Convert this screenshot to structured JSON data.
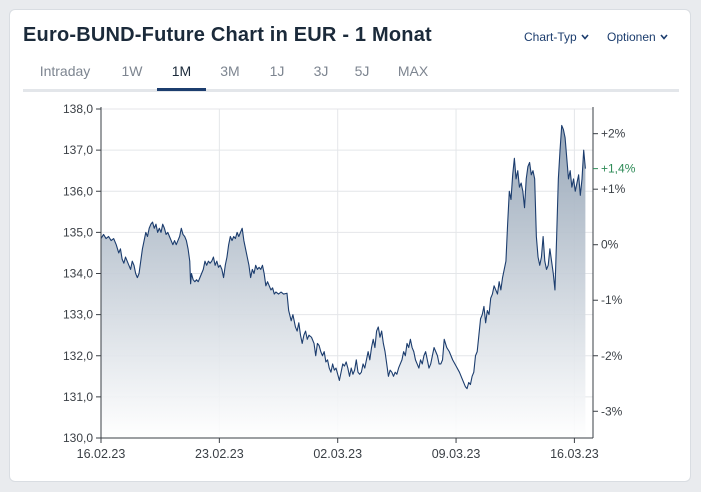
{
  "header": {
    "title": "Euro-BUND-Future Chart in EUR - 1 Monat",
    "chart_type_label": "Chart-Typ",
    "options_label": "Optionen"
  },
  "tabs": [
    {
      "label": "Intraday"
    },
    {
      "label": "1W"
    },
    {
      "label": "1M",
      "active": true
    },
    {
      "label": "3M"
    },
    {
      "label": "1J"
    },
    {
      "label": "3J"
    },
    {
      "label": "5J"
    },
    {
      "label": "MAX"
    }
  ],
  "colors": {
    "line": "#1c3d6e",
    "fill_top": "#93a3b5",
    "fill_bottom": "#ffffff",
    "positive": "#2e8b57",
    "accent": "#1c3d6e"
  },
  "chart_data": {
    "type": "area",
    "title": "",
    "xlabel": "",
    "ylabel": "",
    "ylim": [
      130,
      138
    ],
    "y_ticks": [
      "138,0",
      "137,0",
      "136,0",
      "135,0",
      "134,0",
      "133,0",
      "132,0",
      "131,0",
      "130,0"
    ],
    "y_tick_values": [
      138,
      137,
      136,
      135,
      134,
      133,
      132,
      131,
      130
    ],
    "x_ticks": [
      "16.02.23",
      "23.02.23",
      "02.03.23",
      "09.03.23",
      "16.03.23"
    ],
    "x_tick_positions": [
      0,
      7,
      14,
      21,
      28
    ],
    "xlim": [
      0,
      29.1
    ],
    "right_axis": {
      "labels": [
        "+2%",
        "+1%",
        "0%",
        "-1%",
        "-2%",
        "-3%"
      ],
      "values": [
        137.4,
        136.05,
        134.7,
        133.35,
        132.0,
        130.65
      ],
      "current_change": "+1,4%",
      "current_value": 136.55
    },
    "grid": true,
    "series": [
      {
        "points": [
          [
            0,
            134.85
          ],
          [
            0.15,
            134.95
          ],
          [
            0.3,
            134.85
          ],
          [
            0.45,
            134.9
          ],
          [
            0.6,
            134.8
          ],
          [
            0.75,
            134.85
          ],
          [
            0.9,
            134.7
          ],
          [
            1.05,
            134.5
          ],
          [
            1.15,
            134.6
          ],
          [
            1.25,
            134.35
          ],
          [
            1.35,
            134.25
          ],
          [
            1.45,
            134.4
          ],
          [
            1.55,
            134.3
          ],
          [
            1.65,
            134.2
          ],
          [
            1.75,
            134.1
          ],
          [
            1.85,
            134.3
          ],
          [
            1.95,
            134.2
          ],
          [
            2.05,
            134.0
          ],
          [
            2.15,
            133.9
          ],
          [
            2.25,
            134.0
          ],
          [
            2.35,
            134.3
          ],
          [
            2.45,
            134.6
          ],
          [
            2.55,
            134.8
          ],
          [
            2.65,
            135.0
          ],
          [
            2.75,
            134.9
          ],
          [
            2.85,
            135.1
          ],
          [
            2.95,
            135.2
          ],
          [
            3.05,
            135.25
          ],
          [
            3.15,
            135.1
          ],
          [
            3.25,
            135.2
          ],
          [
            3.35,
            135.0
          ],
          [
            3.45,
            135.1
          ],
          [
            3.55,
            135.0
          ],
          [
            3.65,
            135.2
          ],
          [
            3.75,
            135.1
          ],
          [
            3.85,
            134.95
          ],
          [
            3.95,
            135.0
          ],
          [
            4.05,
            134.9
          ],
          [
            4.15,
            134.8
          ],
          [
            4.25,
            134.7
          ],
          [
            4.35,
            134.8
          ],
          [
            4.45,
            134.7
          ],
          [
            4.55,
            134.8
          ],
          [
            4.65,
            134.9
          ],
          [
            4.75,
            135.1
          ],
          [
            4.85,
            134.95
          ],
          [
            4.95,
            134.9
          ],
          [
            5.05,
            134.8
          ],
          [
            5.15,
            134.6
          ],
          [
            5.25,
            134.3
          ],
          [
            5.3,
            133.75
          ],
          [
            5.35,
            134.0
          ],
          [
            5.45,
            133.85
          ],
          [
            5.55,
            133.8
          ],
          [
            5.65,
            133.85
          ],
          [
            5.75,
            133.8
          ],
          [
            5.85,
            133.9
          ],
          [
            5.95,
            134.0
          ],
          [
            6.05,
            134.1
          ],
          [
            6.15,
            134.3
          ],
          [
            6.25,
            134.2
          ],
          [
            6.35,
            134.3
          ],
          [
            6.45,
            134.25
          ],
          [
            6.55,
            134.3
          ],
          [
            6.65,
            134.4
          ],
          [
            6.75,
            134.2
          ],
          [
            6.85,
            134.3
          ],
          [
            6.95,
            134.15
          ],
          [
            7.05,
            134.2
          ],
          [
            7.15,
            134.1
          ],
          [
            7.25,
            133.9
          ],
          [
            7.35,
            134.2
          ],
          [
            7.45,
            134.4
          ],
          [
            7.55,
            134.7
          ],
          [
            7.65,
            134.9
          ],
          [
            7.75,
            134.8
          ],
          [
            7.85,
            134.9
          ],
          [
            7.95,
            134.85
          ],
          [
            8.05,
            135.0
          ],
          [
            8.15,
            134.9
          ],
          [
            8.25,
            135.0
          ],
          [
            8.35,
            135.1
          ],
          [
            8.45,
            134.8
          ],
          [
            8.55,
            134.6
          ],
          [
            8.65,
            134.4
          ],
          [
            8.75,
            134.2
          ],
          [
            8.85,
            133.9
          ],
          [
            8.95,
            134.1
          ],
          [
            9.05,
            134.0
          ],
          [
            9.15,
            134.2
          ],
          [
            9.25,
            134.1
          ],
          [
            9.35,
            134.15
          ],
          [
            9.45,
            134.1
          ],
          [
            9.55,
            134.2
          ],
          [
            9.65,
            134.0
          ],
          [
            9.75,
            133.7
          ],
          [
            9.85,
            133.8
          ],
          [
            9.95,
            133.7
          ],
          [
            10.05,
            133.6
          ],
          [
            10.15,
            133.65
          ],
          [
            10.25,
            133.5
          ],
          [
            10.35,
            133.55
          ],
          [
            10.5,
            133.5
          ],
          [
            10.65,
            133.55
          ],
          [
            10.8,
            133.5
          ],
          [
            11.0,
            133.52
          ],
          [
            11.1,
            133.1
          ],
          [
            11.25,
            132.85
          ],
          [
            11.35,
            133.0
          ],
          [
            11.5,
            132.7
          ],
          [
            11.6,
            132.6
          ],
          [
            11.7,
            132.8
          ],
          [
            11.8,
            132.5
          ],
          [
            11.9,
            132.3
          ],
          [
            12.0,
            132.5
          ],
          [
            12.1,
            132.6
          ],
          [
            12.2,
            132.4
          ],
          [
            12.3,
            132.5
          ],
          [
            12.45,
            132.45
          ],
          [
            12.6,
            132.3
          ],
          [
            12.7,
            132.0
          ],
          [
            12.8,
            132.3
          ],
          [
            12.9,
            132.25
          ],
          [
            13.0,
            132.1
          ],
          [
            13.1,
            132.0
          ],
          [
            13.2,
            132.1
          ],
          [
            13.3,
            131.85
          ],
          [
            13.4,
            131.9
          ],
          [
            13.5,
            131.7
          ],
          [
            13.6,
            131.6
          ],
          [
            13.7,
            131.8
          ],
          [
            13.8,
            131.65
          ],
          [
            13.9,
            131.7
          ],
          [
            14.0,
            131.55
          ],
          [
            14.1,
            131.4
          ],
          [
            14.2,
            131.6
          ],
          [
            14.3,
            131.8
          ],
          [
            14.4,
            131.75
          ],
          [
            14.5,
            131.85
          ],
          [
            14.6,
            131.7
          ],
          [
            14.7,
            131.5
          ],
          [
            14.8,
            131.7
          ],
          [
            14.9,
            131.55
          ],
          [
            15.0,
            131.65
          ],
          [
            15.1,
            131.9
          ],
          [
            15.2,
            131.6
          ],
          [
            15.3,
            131.55
          ],
          [
            15.4,
            131.6
          ],
          [
            15.5,
            131.8
          ],
          [
            15.6,
            131.7
          ],
          [
            15.7,
            131.9
          ],
          [
            15.8,
            132.1
          ],
          [
            15.9,
            131.9
          ],
          [
            16.0,
            132.2
          ],
          [
            16.1,
            132.4
          ],
          [
            16.2,
            132.2
          ],
          [
            16.3,
            132.6
          ],
          [
            16.4,
            132.7
          ],
          [
            16.5,
            132.45
          ],
          [
            16.6,
            132.6
          ],
          [
            16.7,
            132.3
          ],
          [
            16.8,
            132.1
          ],
          [
            16.9,
            131.8
          ],
          [
            17.0,
            131.5
          ],
          [
            17.1,
            131.65
          ],
          [
            17.2,
            131.6
          ],
          [
            17.3,
            131.5
          ],
          [
            17.4,
            131.6
          ],
          [
            17.5,
            131.55
          ],
          [
            17.6,
            131.7
          ],
          [
            17.7,
            131.8
          ],
          [
            17.8,
            131.9
          ],
          [
            17.9,
            132.1
          ],
          [
            18.0,
            132.0
          ],
          [
            18.1,
            132.3
          ],
          [
            18.2,
            132.2
          ],
          [
            18.3,
            132.4
          ],
          [
            18.4,
            132.2
          ],
          [
            18.5,
            132.1
          ],
          [
            18.6,
            131.9
          ],
          [
            18.7,
            131.8
          ],
          [
            18.8,
            131.7
          ],
          [
            18.9,
            131.9
          ],
          [
            19.0,
            131.8
          ],
          [
            19.1,
            132.0
          ],
          [
            19.2,
            132.1
          ],
          [
            19.3,
            131.9
          ],
          [
            19.4,
            131.7
          ],
          [
            19.5,
            131.8
          ],
          [
            19.6,
            132.0
          ],
          [
            19.7,
            132.2
          ],
          [
            19.8,
            132.1
          ],
          [
            19.9,
            132.0
          ],
          [
            20.0,
            131.8
          ],
          [
            20.1,
            131.8
          ],
          [
            20.2,
            131.9
          ],
          [
            20.3,
            132.4
          ],
          [
            20.45,
            132.2
          ],
          [
            20.6,
            132.1
          ],
          [
            20.8,
            131.9
          ],
          [
            21.0,
            131.75
          ],
          [
            21.2,
            131.6
          ],
          [
            21.4,
            131.4
          ],
          [
            21.55,
            131.25
          ],
          [
            21.65,
            131.2
          ],
          [
            21.75,
            131.35
          ],
          [
            21.85,
            131.3
          ],
          [
            21.95,
            131.5
          ],
          [
            22.05,
            131.6
          ],
          [
            22.15,
            132.0
          ],
          [
            22.25,
            132.1
          ],
          [
            22.35,
            132.5
          ],
          [
            22.45,
            132.9
          ],
          [
            22.55,
            133.0
          ],
          [
            22.65,
            133.2
          ],
          [
            22.75,
            132.8
          ],
          [
            22.85,
            133.1
          ],
          [
            22.95,
            133.0
          ],
          [
            23.05,
            133.4
          ],
          [
            23.15,
            133.5
          ],
          [
            23.25,
            133.7
          ],
          [
            23.35,
            133.6
          ],
          [
            23.45,
            133.5
          ],
          [
            23.55,
            133.8
          ],
          [
            23.65,
            133.6
          ],
          [
            23.75,
            133.9
          ],
          [
            23.85,
            134.1
          ],
          [
            23.95,
            134.3
          ],
          [
            24.05,
            135.2
          ],
          [
            24.15,
            136.0
          ],
          [
            24.25,
            135.8
          ],
          [
            24.35,
            136.4
          ],
          [
            24.45,
            136.8
          ],
          [
            24.55,
            136.3
          ],
          [
            24.65,
            136.5
          ],
          [
            24.75,
            136.1
          ],
          [
            24.85,
            136.2
          ],
          [
            24.95,
            136.0
          ],
          [
            25.05,
            135.6
          ],
          [
            25.15,
            136.3
          ],
          [
            25.25,
            136.6
          ],
          [
            25.35,
            136.7
          ],
          [
            25.45,
            136.4
          ],
          [
            25.55,
            136.5
          ],
          [
            25.65,
            136.3
          ],
          [
            25.75,
            134.9
          ],
          [
            25.85,
            134.4
          ],
          [
            25.95,
            134.2
          ],
          [
            26.05,
            134.4
          ],
          [
            26.15,
            134.9
          ],
          [
            26.25,
            134.3
          ],
          [
            26.35,
            134.1
          ],
          [
            26.45,
            134.2
          ],
          [
            26.55,
            134.6
          ],
          [
            26.65,
            134.3
          ],
          [
            26.75,
            134.0
          ],
          [
            26.85,
            133.6
          ],
          [
            26.95,
            134.9
          ],
          [
            27.05,
            136.3
          ],
          [
            27.15,
            137.0
          ],
          [
            27.25,
            137.6
          ],
          [
            27.35,
            137.5
          ],
          [
            27.45,
            137.3
          ],
          [
            27.55,
            136.8
          ],
          [
            27.65,
            136.3
          ],
          [
            27.75,
            136.5
          ],
          [
            27.85,
            136.1
          ],
          [
            27.95,
            136.3
          ],
          [
            28.05,
            136.0
          ],
          [
            28.15,
            136.2
          ],
          [
            28.25,
            136.4
          ],
          [
            28.35,
            135.9
          ],
          [
            28.45,
            136.3
          ],
          [
            28.55,
            137.0
          ],
          [
            28.65,
            136.55
          ]
        ]
      }
    ]
  }
}
